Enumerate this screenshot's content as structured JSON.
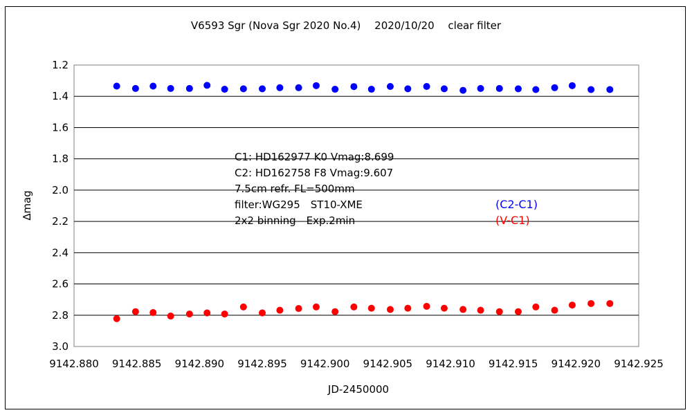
{
  "chart_data": {
    "type": "scatter",
    "title": "V6593 Sgr (Nova Sgr 2020 No.4)　 2020/10/20　 clear filter",
    "xlabel": "JD-2450000",
    "ylabel": "∆mag",
    "xlim": [
      9142.88,
      9142.925
    ],
    "ylim": [
      1.2,
      3.0
    ],
    "y_inverted": true,
    "grid": "horizontal",
    "x_ticks": [
      "9142.880",
      "9142.885",
      "9142.890",
      "9142.895",
      "9142.900",
      "9142.905",
      "9142.910",
      "9142.915",
      "9142.920",
      "9142.925"
    ],
    "x_tick_values": [
      9142.88,
      9142.885,
      9142.89,
      9142.895,
      9142.9,
      9142.905,
      9142.91,
      9142.915,
      9142.92,
      9142.925
    ],
    "y_ticks": [
      "1.2",
      "1.4",
      "1.6",
      "1.8",
      "2.0",
      "2.2",
      "2.4",
      "2.6",
      "2.8",
      "3.0"
    ],
    "y_tick_values": [
      1.2,
      1.4,
      1.6,
      1.8,
      2.0,
      2.2,
      2.4,
      2.6,
      2.8,
      3.0
    ],
    "annotation_lines": [
      "C1: HD162977 K0 Vmag:8.699",
      "C2: HD162758 F8 Vmag:9.607",
      "7.5cm refr. FL=500mm",
      "filter:WG295　ST10-XME",
      "2x2 binning　Exp.2min"
    ],
    "series": [
      {
        "name": "(C2-C1)",
        "color": "#0000ff",
        "x": [
          9142.8834,
          9142.8849,
          9142.8863,
          9142.8877,
          9142.8892,
          9142.8906,
          9142.892,
          9142.8935,
          9142.895,
          9142.8964,
          9142.8979,
          9142.8993,
          9142.9008,
          9142.9023,
          9142.9037,
          9142.9052,
          9142.9066,
          9142.9081,
          9142.9095,
          9142.911,
          9142.9124,
          9142.9139,
          9142.9154,
          9142.9168,
          9142.9183,
          9142.9197,
          9142.9212,
          9142.9227
        ],
        "values": [
          1.335,
          1.35,
          1.335,
          1.35,
          1.35,
          1.33,
          1.355,
          1.352,
          1.352,
          1.345,
          1.345,
          1.332,
          1.355,
          1.338,
          1.355,
          1.337,
          1.352,
          1.337,
          1.352,
          1.362,
          1.35,
          1.35,
          1.352,
          1.357,
          1.345,
          1.332,
          1.357,
          1.357
        ]
      },
      {
        "name": "(V-C1)",
        "color": "#ff0000",
        "x": [
          9142.8834,
          9142.8849,
          9142.8863,
          9142.8877,
          9142.8892,
          9142.8906,
          9142.892,
          9142.8935,
          9142.895,
          9142.8964,
          9142.8979,
          9142.8993,
          9142.9008,
          9142.9023,
          9142.9037,
          9142.9052,
          9142.9066,
          9142.9081,
          9142.9095,
          9142.911,
          9142.9124,
          9142.9139,
          9142.9154,
          9142.9168,
          9142.9183,
          9142.9197,
          9142.9212,
          9142.9227
        ],
        "values": [
          2.822,
          2.777,
          2.783,
          2.805,
          2.792,
          2.785,
          2.792,
          2.747,
          2.785,
          2.768,
          2.757,
          2.747,
          2.777,
          2.747,
          2.755,
          2.763,
          2.755,
          2.743,
          2.755,
          2.763,
          2.768,
          2.777,
          2.777,
          2.747,
          2.768,
          2.735,
          2.725,
          2.725
        ]
      }
    ]
  }
}
